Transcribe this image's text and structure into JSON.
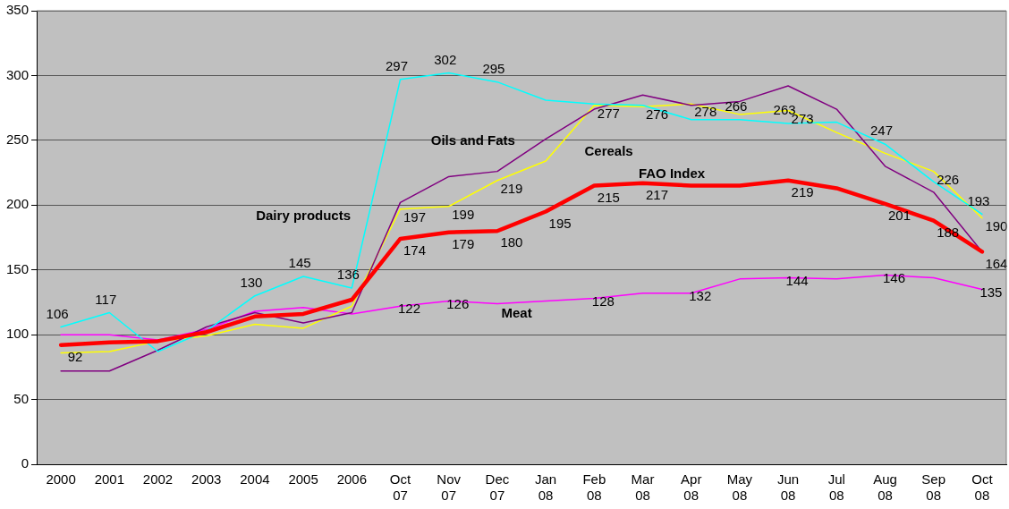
{
  "chart_data": {
    "type": "line",
    "categories": [
      "2000",
      "2001",
      "2002",
      "2003",
      "2004",
      "2005",
      "2006",
      "Oct 07",
      "Nov 07",
      "Dec 07",
      "Jan 08",
      "Feb 08",
      "Mar 08",
      "Apr 08",
      "May 08",
      "Jun 08",
      "Jul 08",
      "Aug 08",
      "Sep 08",
      "Oct 08"
    ],
    "ylim": [
      0,
      350
    ],
    "yticks": [
      0,
      50,
      100,
      150,
      200,
      250,
      300,
      350
    ],
    "grid": "y",
    "legend": false,
    "marker": "none",
    "line_style": "solid",
    "series": [
      {
        "name": "FAO Index",
        "color": "#ff0000",
        "values": [
          92,
          94,
          95,
          102,
          114,
          116,
          127,
          174,
          179,
          180,
          195,
          215,
          217,
          215,
          215,
          219,
          213,
          201,
          188,
          164
        ],
        "value_labels": [
          "92",
          null,
          null,
          null,
          null,
          null,
          null,
          "174",
          "179",
          "180",
          "195",
          "215",
          "217",
          null,
          null,
          "219",
          null,
          "201",
          "188",
          "164"
        ]
      },
      {
        "name": "Dairy products",
        "color": "#00ffff",
        "values": [
          106,
          117,
          87,
          103,
          130,
          145,
          136,
          297,
          302,
          295,
          281,
          278,
          277,
          266,
          266,
          263,
          264,
          247,
          218,
          193
        ],
        "value_labels": [
          "106",
          "117",
          null,
          null,
          "130",
          "145",
          "136",
          "297",
          "302",
          "295",
          null,
          null,
          null,
          null,
          "266",
          "263",
          null,
          "247",
          null,
          "193"
        ]
      },
      {
        "name": "Oils and Fats",
        "color": "#800080",
        "values": [
          72,
          72,
          88,
          106,
          117,
          109,
          117,
          202,
          222,
          226,
          251,
          274,
          285,
          277,
          280,
          292,
          274,
          230,
          210,
          164
        ]
      },
      {
        "name": "Cereals",
        "color": "#ffff00",
        "values": [
          86,
          87,
          95,
          99,
          108,
          105,
          122,
          197,
          199,
          219,
          234,
          277,
          276,
          278,
          270,
          273,
          256,
          240,
          226,
          190
        ],
        "value_labels": [
          null,
          null,
          null,
          null,
          null,
          null,
          null,
          "197",
          "199",
          "219",
          null,
          "277",
          "276",
          "278",
          null,
          "273",
          null,
          null,
          "226",
          "190"
        ]
      },
      {
        "name": "Meat",
        "color": "#ff00ff",
        "values": [
          100,
          100,
          96,
          104,
          118,
          121,
          116,
          122,
          126,
          124,
          126,
          128,
          132,
          132,
          143,
          144,
          143,
          146,
          144,
          135
        ],
        "value_labels": [
          null,
          null,
          null,
          null,
          null,
          null,
          null,
          "122",
          "126",
          null,
          null,
          "128",
          null,
          "132",
          null,
          "144",
          null,
          "146",
          null,
          "135"
        ]
      }
    ]
  }
}
